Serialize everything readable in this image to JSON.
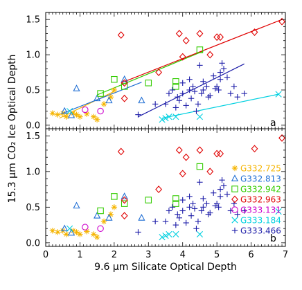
{
  "chart_data": {
    "type": "scatter",
    "xlabel": "9.6 µm Silicate Optical Depth",
    "ylabel": "15.3 µm CO₂ Ice Optical Depth",
    "xlim": [
      0,
      7
    ],
    "ylim": [
      -0.05,
      1.6
    ],
    "x_ticks": [
      0,
      1,
      2,
      3,
      4,
      5,
      6,
      7
    ],
    "y_ticks": [
      0.0,
      0.5,
      1.0,
      1.5
    ],
    "grid": false,
    "legend_placement": "right (bottom panel)",
    "series": [
      {
        "name": "G332.725",
        "marker": "asterisk",
        "color": "#f5b400",
        "points": [
          [
            0.2,
            0.17
          ],
          [
            0.35,
            0.15
          ],
          [
            0.5,
            0.17
          ],
          [
            0.6,
            0.12
          ],
          [
            0.8,
            0.17
          ],
          [
            0.9,
            0.15
          ],
          [
            1.0,
            0.12
          ],
          [
            1.2,
            0.16
          ],
          [
            1.4,
            0.12
          ],
          [
            1.5,
            0.08
          ],
          [
            1.7,
            0.3
          ],
          [
            1.9,
            0.4
          ],
          [
            2.0,
            0.5
          ]
        ]
      },
      {
        "name": "G332.813",
        "marker": "triangle",
        "color": "#1f6ed4",
        "points": [
          [
            0.55,
            0.2
          ],
          [
            0.75,
            0.14
          ],
          [
            0.9,
            0.52
          ],
          [
            1.5,
            0.38
          ],
          [
            1.85,
            0.35
          ],
          [
            2.3,
            0.65
          ],
          [
            2.8,
            0.35
          ]
        ]
      },
      {
        "name": "G332.942",
        "marker": "square",
        "color": "#33cc00",
        "points": [
          [
            1.6,
            0.45
          ],
          [
            2.0,
            0.65
          ],
          [
            2.3,
            0.55
          ],
          [
            3.0,
            0.6
          ],
          [
            3.8,
            0.62
          ],
          [
            3.8,
            0.55
          ],
          [
            4.5,
            1.07
          ]
        ]
      },
      {
        "name": "G332.963",
        "marker": "diamond",
        "color": "#e00000",
        "points": [
          [
            2.2,
            1.28
          ],
          [
            2.3,
            0.6
          ],
          [
            2.3,
            0.38
          ],
          [
            3.3,
            0.75
          ],
          [
            3.9,
            1.3
          ],
          [
            4.0,
            0.97
          ],
          [
            4.1,
            1.2
          ],
          [
            4.5,
            1.3
          ],
          [
            4.8,
            1.0
          ],
          [
            5.0,
            1.25
          ],
          [
            5.1,
            1.25
          ],
          [
            6.1,
            1.32
          ],
          [
            6.9,
            1.47
          ]
        ]
      },
      {
        "name": "G333.131",
        "marker": "circle",
        "color": "#cc00cc",
        "points": [
          [
            1.15,
            0.22
          ],
          [
            1.6,
            0.2
          ]
        ]
      },
      {
        "name": "G333.184",
        "marker": "cross",
        "color": "#00d0e0",
        "points": [
          [
            0.7,
            0.2
          ],
          [
            3.4,
            0.08
          ],
          [
            3.5,
            0.1
          ],
          [
            3.6,
            0.12
          ],
          [
            3.8,
            0.12
          ],
          [
            4.5,
            0.12
          ],
          [
            6.8,
            0.44
          ]
        ]
      },
      {
        "name": "G333.466",
        "marker": "plus",
        "color": "#1c1ca8",
        "points": [
          [
            2.7,
            0.15
          ],
          [
            3.2,
            0.3
          ],
          [
            3.5,
            0.3
          ],
          [
            3.6,
            0.45
          ],
          [
            3.7,
            0.5
          ],
          [
            3.8,
            0.25
          ],
          [
            3.85,
            0.4
          ],
          [
            3.9,
            0.35
          ],
          [
            4.0,
            0.45
          ],
          [
            4.0,
            0.6
          ],
          [
            4.1,
            0.28
          ],
          [
            4.2,
            0.65
          ],
          [
            4.2,
            0.5
          ],
          [
            4.25,
            0.38
          ],
          [
            4.3,
            0.55
          ],
          [
            4.35,
            0.48
          ],
          [
            4.4,
            0.2
          ],
          [
            4.45,
            0.3
          ],
          [
            4.5,
            0.85
          ],
          [
            4.55,
            0.45
          ],
          [
            4.6,
            0.5
          ],
          [
            4.6,
            0.62
          ],
          [
            4.7,
            0.55
          ],
          [
            4.75,
            0.4
          ],
          [
            4.8,
            0.42
          ],
          [
            4.9,
            0.7
          ],
          [
            4.95,
            0.52
          ],
          [
            5.0,
            0.55
          ],
          [
            5.05,
            0.5
          ],
          [
            5.1,
            0.65
          ],
          [
            5.1,
            0.75
          ],
          [
            5.15,
            0.88
          ],
          [
            5.2,
            0.8
          ],
          [
            5.3,
            0.68
          ],
          [
            5.4,
            0.45
          ],
          [
            5.5,
            0.55
          ],
          [
            5.6,
            0.4
          ],
          [
            5.8,
            0.45
          ]
        ]
      }
    ],
    "fit_lines": [
      {
        "series": "G332.725",
        "color": "#f5b400",
        "x": [
          0.4,
          2.0
        ],
        "y": [
          0.1,
          0.48
        ]
      },
      {
        "series": "G332.813",
        "color": "#1f6ed4",
        "x": [
          0.5,
          2.8
        ],
        "y": [
          0.17,
          0.61
        ]
      },
      {
        "series": "G332.942",
        "color": "#33cc00",
        "x": [
          1.5,
          4.6
        ],
        "y": [
          0.43,
          1.05
        ]
      },
      {
        "series": "G332.963",
        "color": "#e00000",
        "x": [
          2.2,
          6.9
        ],
        "y": [
          0.6,
          1.5
        ]
      },
      {
        "series": "G333.184",
        "color": "#00d0e0",
        "x": [
          3.4,
          6.8
        ],
        "y": [
          0.1,
          0.44
        ]
      },
      {
        "series": "G333.466",
        "color": "#1c1ca8",
        "x": [
          2.7,
          5.8
        ],
        "y": [
          0.12,
          0.87
        ]
      }
    ],
    "panels": [
      {
        "label": "a",
        "show_fit_lines": true,
        "show_legend": false
      },
      {
        "label": "b",
        "show_fit_lines": false,
        "show_legend": true
      }
    ]
  }
}
